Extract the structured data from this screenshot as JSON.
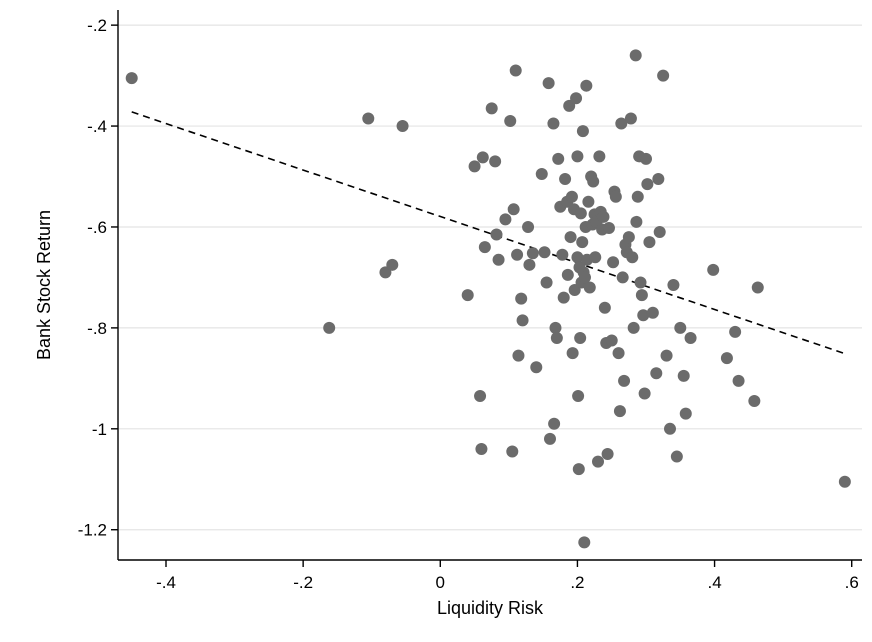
{
  "chart_data": {
    "type": "scatter",
    "xlabel": "Liquidity Risk",
    "ylabel": "Bank Stock Return",
    "xlim": [
      -0.47,
      0.615
    ],
    "ylim": [
      -1.26,
      -0.17
    ],
    "xticks": [
      -0.4,
      -0.2,
      0,
      0.2,
      0.4,
      0.6
    ],
    "xtick_labels": [
      "-.4",
      "-.2",
      "0",
      ".2",
      ".4",
      ".6"
    ],
    "yticks": [
      -0.2,
      -0.4,
      -0.6,
      -0.8,
      -1.0,
      -1.2
    ],
    "ytick_labels": [
      "-.2",
      "-.4",
      "-.6",
      "-.8",
      "-1",
      "-1.2"
    ],
    "grid": "horizontal",
    "legend": "none",
    "colors": {
      "points": "#6b6b6b",
      "fit_line": "#000000",
      "grid": "#e4e4e4",
      "axis": "#000000"
    },
    "fit_line": {
      "x": [
        -0.45,
        0.59
      ],
      "y": [
        -0.372,
        -0.851
      ],
      "style": "dashed"
    },
    "points": [
      [
        -0.45,
        -0.305
      ],
      [
        -0.162,
        -0.8
      ],
      [
        -0.105,
        -0.385
      ],
      [
        -0.055,
        -0.4
      ],
      [
        -0.08,
        -0.69
      ],
      [
        -0.07,
        -0.675
      ],
      [
        0.04,
        -0.735
      ],
      [
        0.05,
        -0.48
      ],
      [
        0.058,
        -0.935
      ],
      [
        0.06,
        -1.04
      ],
      [
        0.062,
        -0.462
      ],
      [
        0.065,
        -0.64
      ],
      [
        0.075,
        -0.365
      ],
      [
        0.08,
        -0.47
      ],
      [
        0.082,
        -0.615
      ],
      [
        0.085,
        -0.665
      ],
      [
        0.095,
        -0.585
      ],
      [
        0.102,
        -0.39
      ],
      [
        0.105,
        -1.045
      ],
      [
        0.107,
        -0.565
      ],
      [
        0.11,
        -0.29
      ],
      [
        0.112,
        -0.655
      ],
      [
        0.114,
        -0.855
      ],
      [
        0.118,
        -0.742
      ],
      [
        0.12,
        -0.785
      ],
      [
        0.128,
        -0.6
      ],
      [
        0.13,
        -0.675
      ],
      [
        0.135,
        -0.652
      ],
      [
        0.14,
        -0.878
      ],
      [
        0.148,
        -0.495
      ],
      [
        0.152,
        -0.65
      ],
      [
        0.155,
        -0.71
      ],
      [
        0.158,
        -0.315
      ],
      [
        0.16,
        -1.02
      ],
      [
        0.165,
        -0.395
      ],
      [
        0.166,
        -0.99
      ],
      [
        0.168,
        -0.8
      ],
      [
        0.17,
        -0.82
      ],
      [
        0.172,
        -0.465
      ],
      [
        0.175,
        -0.56
      ],
      [
        0.178,
        -0.655
      ],
      [
        0.18,
        -0.74
      ],
      [
        0.182,
        -0.505
      ],
      [
        0.185,
        -0.55
      ],
      [
        0.186,
        -0.695
      ],
      [
        0.188,
        -0.36
      ],
      [
        0.19,
        -0.62
      ],
      [
        0.192,
        -0.54
      ],
      [
        0.193,
        -0.85
      ],
      [
        0.195,
        -0.565
      ],
      [
        0.196,
        -0.725
      ],
      [
        0.198,
        -0.345
      ],
      [
        0.2,
        -0.46
      ],
      [
        0.2,
        -0.66
      ],
      [
        0.201,
        -0.935
      ],
      [
        0.202,
        -1.08
      ],
      [
        0.203,
        -0.68
      ],
      [
        0.204,
        -0.82
      ],
      [
        0.205,
        -0.573
      ],
      [
        0.206,
        -0.71
      ],
      [
        0.207,
        -0.63
      ],
      [
        0.208,
        -0.41
      ],
      [
        0.209,
        -0.69
      ],
      [
        0.21,
        -1.225
      ],
      [
        0.211,
        -0.7
      ],
      [
        0.212,
        -0.6
      ],
      [
        0.213,
        -0.32
      ],
      [
        0.214,
        -0.665
      ],
      [
        0.216,
        -0.55
      ],
      [
        0.218,
        -0.72
      ],
      [
        0.22,
        -0.5
      ],
      [
        0.222,
        -0.595
      ],
      [
        0.223,
        -0.51
      ],
      [
        0.225,
        -0.575
      ],
      [
        0.226,
        -0.66
      ],
      [
        0.228,
        -0.59
      ],
      [
        0.23,
        -1.065
      ],
      [
        0.232,
        -0.46
      ],
      [
        0.234,
        -0.57
      ],
      [
        0.236,
        -0.605
      ],
      [
        0.238,
        -0.58
      ],
      [
        0.24,
        -0.76
      ],
      [
        0.242,
        -0.83
      ],
      [
        0.244,
        -1.05
      ],
      [
        0.246,
        -0.602
      ],
      [
        0.25,
        -0.825
      ],
      [
        0.252,
        -0.67
      ],
      [
        0.254,
        -0.53
      ],
      [
        0.256,
        -0.54
      ],
      [
        0.26,
        -0.85
      ],
      [
        0.262,
        -0.965
      ],
      [
        0.264,
        -0.395
      ],
      [
        0.266,
        -0.7
      ],
      [
        0.268,
        -0.905
      ],
      [
        0.27,
        -0.635
      ],
      [
        0.272,
        -0.65
      ],
      [
        0.275,
        -0.62
      ],
      [
        0.278,
        -0.385
      ],
      [
        0.28,
        -0.66
      ],
      [
        0.282,
        -0.8
      ],
      [
        0.285,
        -0.26
      ],
      [
        0.286,
        -0.59
      ],
      [
        0.288,
        -0.54
      ],
      [
        0.29,
        -0.46
      ],
      [
        0.292,
        -0.71
      ],
      [
        0.294,
        -0.735
      ],
      [
        0.296,
        -0.775
      ],
      [
        0.298,
        -0.93
      ],
      [
        0.3,
        -0.465
      ],
      [
        0.302,
        -0.515
      ],
      [
        0.305,
        -0.63
      ],
      [
        0.31,
        -0.77
      ],
      [
        0.315,
        -0.89
      ],
      [
        0.318,
        -0.505
      ],
      [
        0.32,
        -0.61
      ],
      [
        0.325,
        -0.3
      ],
      [
        0.33,
        -0.855
      ],
      [
        0.335,
        -1.0
      ],
      [
        0.34,
        -0.715
      ],
      [
        0.345,
        -1.055
      ],
      [
        0.35,
        -0.8
      ],
      [
        0.355,
        -0.895
      ],
      [
        0.358,
        -0.97
      ],
      [
        0.365,
        -0.82
      ],
      [
        0.398,
        -0.685
      ],
      [
        0.418,
        -0.86
      ],
      [
        0.43,
        -0.808
      ],
      [
        0.435,
        -0.905
      ],
      [
        0.458,
        -0.945
      ],
      [
        0.463,
        -0.72
      ],
      [
        0.59,
        -1.105
      ]
    ]
  }
}
